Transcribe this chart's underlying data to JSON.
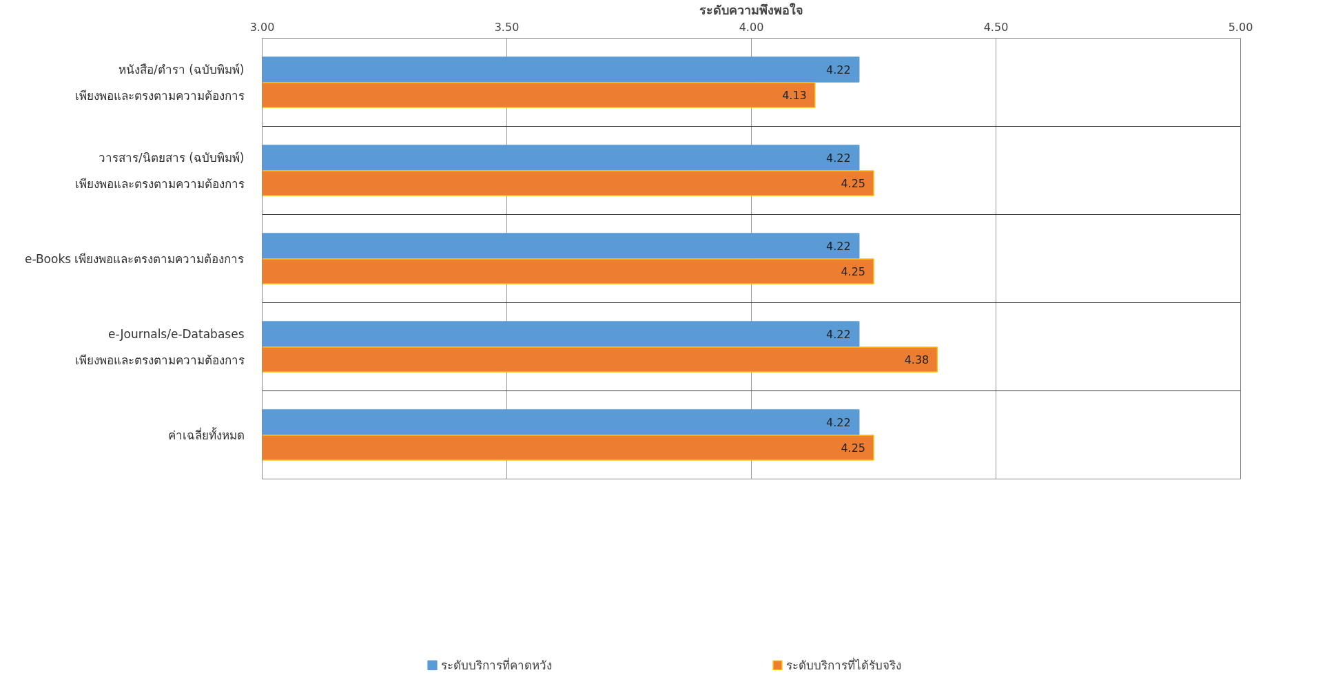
{
  "chart_data": {
    "type": "bar",
    "orientation": "horizontal",
    "xlabel": "ระดับความพึงพอใจ",
    "categories": [
      "หนังสือ/ตำรา (ฉบับพิมพ์) เพียงพอและตรงตามความต้องการ",
      "วารสาร/นิตยสาร (ฉบับพิมพ์) เพียงพอและตรงตามความต้องการ",
      "e-Books เพียงพอและตรงตามความต้องการ",
      "e-Journals/e-Databases เพียงพอและตรงตามความต้องการ",
      "ค่าเฉลี่ยทั้งหมด"
    ],
    "series": [
      {
        "name": "ระดับบริการที่คาดหวัง",
        "color": "#5b9bd5",
        "values": [
          4.22,
          4.22,
          4.22,
          4.22,
          4.22
        ]
      },
      {
        "name": "ระดับบริการที่ได้รับจริง",
        "color": "#ed7d31",
        "values": [
          4.13,
          4.25,
          4.25,
          4.38,
          4.25
        ]
      }
    ],
    "xlim": [
      3,
      5
    ],
    "xticks": [
      {
        "value": 3,
        "label": "3.00"
      },
      {
        "value": 3.5,
        "label": "3.50"
      },
      {
        "value": 4,
        "label": "4.00"
      },
      {
        "value": 4.5,
        "label": "4.50"
      },
      {
        "value": 5,
        "label": "5.00"
      }
    ],
    "data_labels": true,
    "grid": true,
    "legend": "bottom"
  }
}
